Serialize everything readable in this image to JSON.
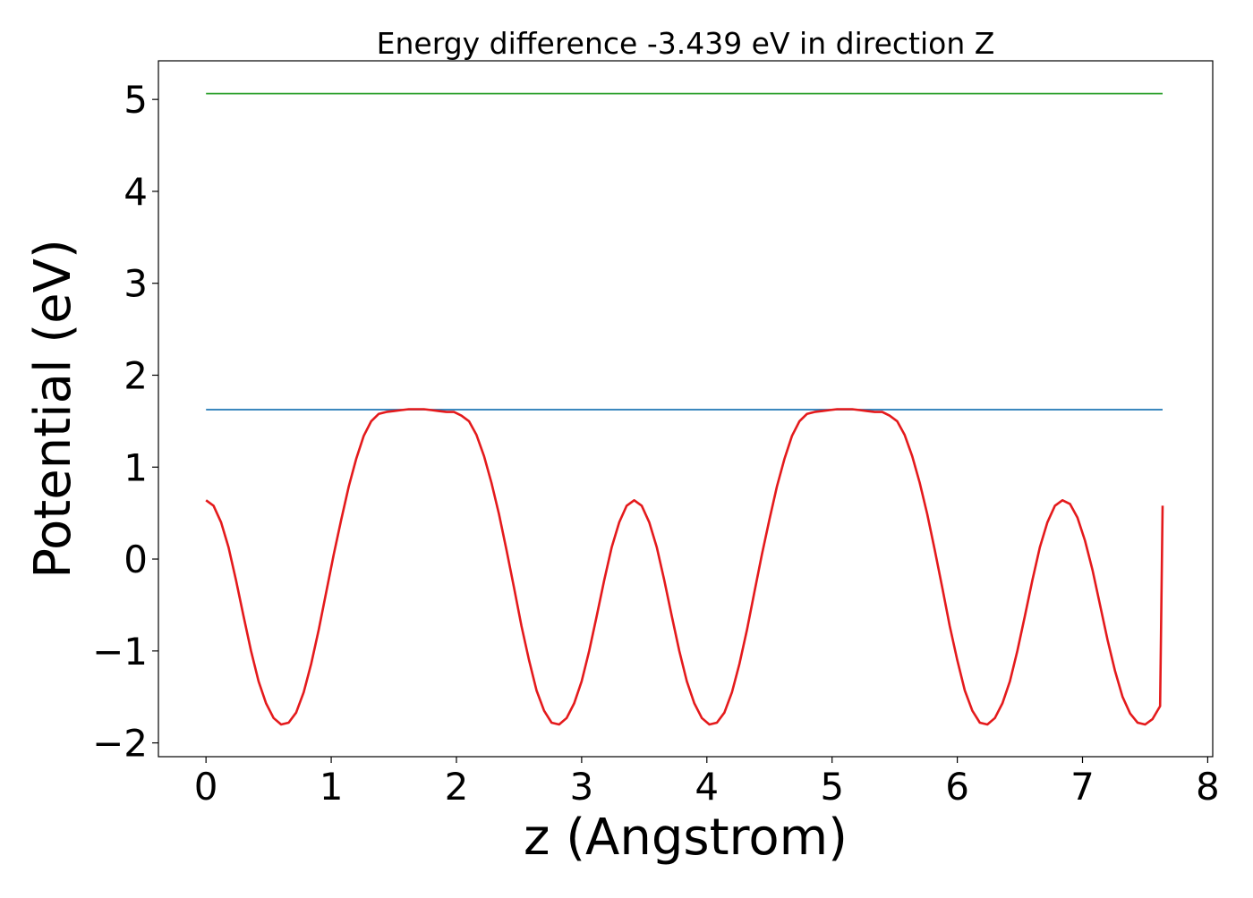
{
  "chart_data": {
    "type": "line",
    "title": "Energy difference -3.439 eV in direction Z",
    "xlabel": "z (Angstrom)",
    "ylabel": "Potential (eV)",
    "xlim": [
      -0.38,
      8.04
    ],
    "ylim": [
      -2.15,
      5.42
    ],
    "xticks": [
      0,
      1,
      2,
      3,
      4,
      5,
      6,
      7,
      8
    ],
    "xtick_labels": [
      "0",
      "1",
      "2",
      "3",
      "4",
      "5",
      "6",
      "7",
      "8"
    ],
    "yticks": [
      -2,
      -1,
      0,
      1,
      2,
      3,
      4,
      5
    ],
    "ytick_labels": [
      "−2",
      "−1",
      "0",
      "1",
      "2",
      "3",
      "4",
      "5"
    ],
    "grid": false,
    "legend": "none",
    "series": [
      {
        "color": "#1f77b4",
        "x": [
          0,
          7.64
        ],
        "y": [
          1.625,
          1.625
        ]
      },
      {
        "color": "#2ca02c",
        "x": [
          0,
          7.64
        ],
        "y": [
          5.064,
          5.064
        ]
      },
      {
        "color": "#e41a1c",
        "x": [
          0.0,
          0.06,
          0.12,
          0.18,
          0.24,
          0.3,
          0.36,
          0.42,
          0.48,
          0.54,
          0.6,
          0.66,
          0.72,
          0.78,
          0.84,
          0.9,
          0.96,
          1.02,
          1.08,
          1.14,
          1.2,
          1.26,
          1.32,
          1.38,
          1.44,
          1.5,
          1.56,
          1.62,
          1.68,
          1.74,
          1.8,
          1.86,
          1.92,
          1.98,
          2.04,
          2.1,
          2.16,
          2.22,
          2.28,
          2.34,
          2.4,
          2.46,
          2.52,
          2.58,
          2.64,
          2.7,
          2.76,
          2.82,
          2.88,
          2.94,
          3.0,
          3.06,
          3.12,
          3.18,
          3.24,
          3.3,
          3.36,
          3.42,
          3.48,
          3.54,
          3.6,
          3.66,
          3.72,
          3.78,
          3.84,
          3.9,
          3.96,
          4.02,
          4.08,
          4.14,
          4.2,
          4.26,
          4.32,
          4.38,
          4.44,
          4.5,
          4.56,
          4.62,
          4.68,
          4.74,
          4.8,
          4.86,
          4.92,
          4.98,
          5.04,
          5.1,
          5.16,
          5.22,
          5.28,
          5.34,
          5.4,
          5.46,
          5.52,
          5.58,
          5.64,
          5.7,
          5.76,
          5.82,
          5.88,
          5.94,
          6.0,
          6.06,
          6.12,
          6.18,
          6.24,
          6.3,
          6.36,
          6.42,
          6.48,
          6.54,
          6.6,
          6.66,
          6.72,
          6.78,
          6.84,
          6.9,
          6.96,
          7.02,
          7.08,
          7.14,
          7.2,
          7.26,
          7.32,
          7.38,
          7.44,
          7.5,
          7.56,
          7.62,
          7.64
        ],
        "y": [
          0.64,
          0.58,
          0.4,
          0.13,
          -0.23,
          -0.62,
          -1.0,
          -1.33,
          -1.57,
          -1.73,
          -1.8,
          -1.78,
          -1.67,
          -1.45,
          -1.14,
          -0.77,
          -0.36,
          0.05,
          0.43,
          0.79,
          1.09,
          1.34,
          1.5,
          1.58,
          1.6,
          1.61,
          1.62,
          1.63,
          1.63,
          1.63,
          1.62,
          1.61,
          1.6,
          1.6,
          1.56,
          1.5,
          1.35,
          1.12,
          0.83,
          0.49,
          0.1,
          -0.31,
          -0.73,
          -1.1,
          -1.43,
          -1.65,
          -1.78,
          -1.8,
          -1.73,
          -1.57,
          -1.33,
          -1.0,
          -0.62,
          -0.23,
          0.13,
          0.4,
          0.58,
          0.64,
          0.58,
          0.4,
          0.13,
          -0.23,
          -0.62,
          -1.0,
          -1.33,
          -1.57,
          -1.73,
          -1.8,
          -1.78,
          -1.67,
          -1.45,
          -1.14,
          -0.77,
          -0.36,
          0.05,
          0.43,
          0.79,
          1.09,
          1.34,
          1.5,
          1.58,
          1.6,
          1.61,
          1.62,
          1.63,
          1.63,
          1.63,
          1.62,
          1.61,
          1.6,
          1.6,
          1.56,
          1.5,
          1.35,
          1.12,
          0.83,
          0.49,
          0.1,
          -0.31,
          -0.73,
          -1.1,
          -1.43,
          -1.65,
          -1.78,
          -1.8,
          -1.73,
          -1.57,
          -1.33,
          -1.0,
          -0.62,
          -0.23,
          0.13,
          0.4,
          0.58,
          0.64,
          0.6,
          0.45,
          0.2,
          -0.12,
          -0.5,
          -0.88,
          -1.22,
          -1.5,
          -1.68,
          -1.78,
          -1.8,
          -1.74,
          -1.6,
          0.58
        ]
      }
    ]
  }
}
